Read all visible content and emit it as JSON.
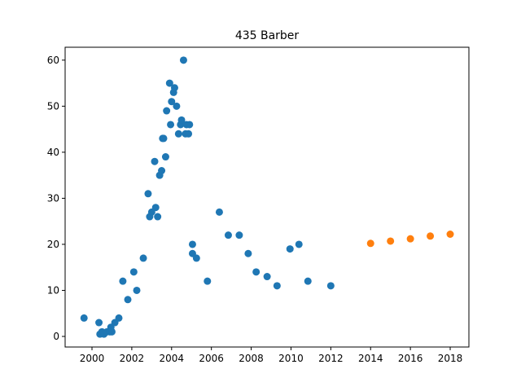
{
  "chart_data": {
    "type": "scatter",
    "title": "435 Barber",
    "xlim": [
      1998.65,
      2018.94
    ],
    "ylim": [
      -2.3,
      62.8
    ],
    "xticks": [
      2000,
      2002,
      2004,
      2006,
      2008,
      2010,
      2012,
      2014,
      2016,
      2018
    ],
    "yticks": [
      0,
      10,
      20,
      30,
      40,
      50,
      60
    ],
    "series": [
      {
        "color": "#1f77b4",
        "x": [
          1999.6,
          2000.35,
          2000.4,
          2000.5,
          2000.6,
          2000.75,
          2000.9,
          2000.95,
          2001.0,
          2001.15,
          2001.35,
          2001.55,
          2001.8,
          2002.1,
          2002.25,
          2002.58,
          2002.82,
          2002.9,
          2003.0,
          2003.15,
          2003.2,
          2003.3,
          2003.4,
          2003.5,
          2003.55,
          2003.6,
          2003.7,
          2003.75,
          2003.9,
          2003.95,
          2004.0,
          2004.1,
          2004.15,
          2004.25,
          2004.35,
          2004.45,
          2004.5,
          2004.6,
          2004.7,
          2004.75,
          2004.85,
          2004.9,
          2005.05,
          2005.05,
          2005.25,
          2005.8,
          2006.4,
          2006.85,
          2007.4,
          2007.85,
          2008.25,
          2008.8,
          2009.3,
          2009.95,
          2010.4,
          2010.85,
          2012.0
        ],
        "values": [
          4,
          3,
          0.5,
          1,
          0.5,
          1,
          1,
          2,
          1,
          3,
          4,
          12,
          8,
          14,
          10,
          17,
          31,
          26,
          27,
          38,
          28,
          26,
          35,
          36,
          43,
          43,
          39,
          49,
          55,
          46,
          51,
          53,
          54,
          50,
          44,
          46,
          47,
          60,
          44,
          46,
          44,
          46,
          20,
          18,
          17,
          12,
          27,
          22,
          22,
          18,
          14,
          13,
          11,
          19,
          20,
          12,
          11
        ]
      },
      {
        "color": "#ff7f0e",
        "x": [
          2014,
          2015,
          2016,
          2017,
          2018
        ],
        "values": [
          20.2,
          20.7,
          21.2,
          21.8,
          22.2
        ]
      }
    ]
  }
}
